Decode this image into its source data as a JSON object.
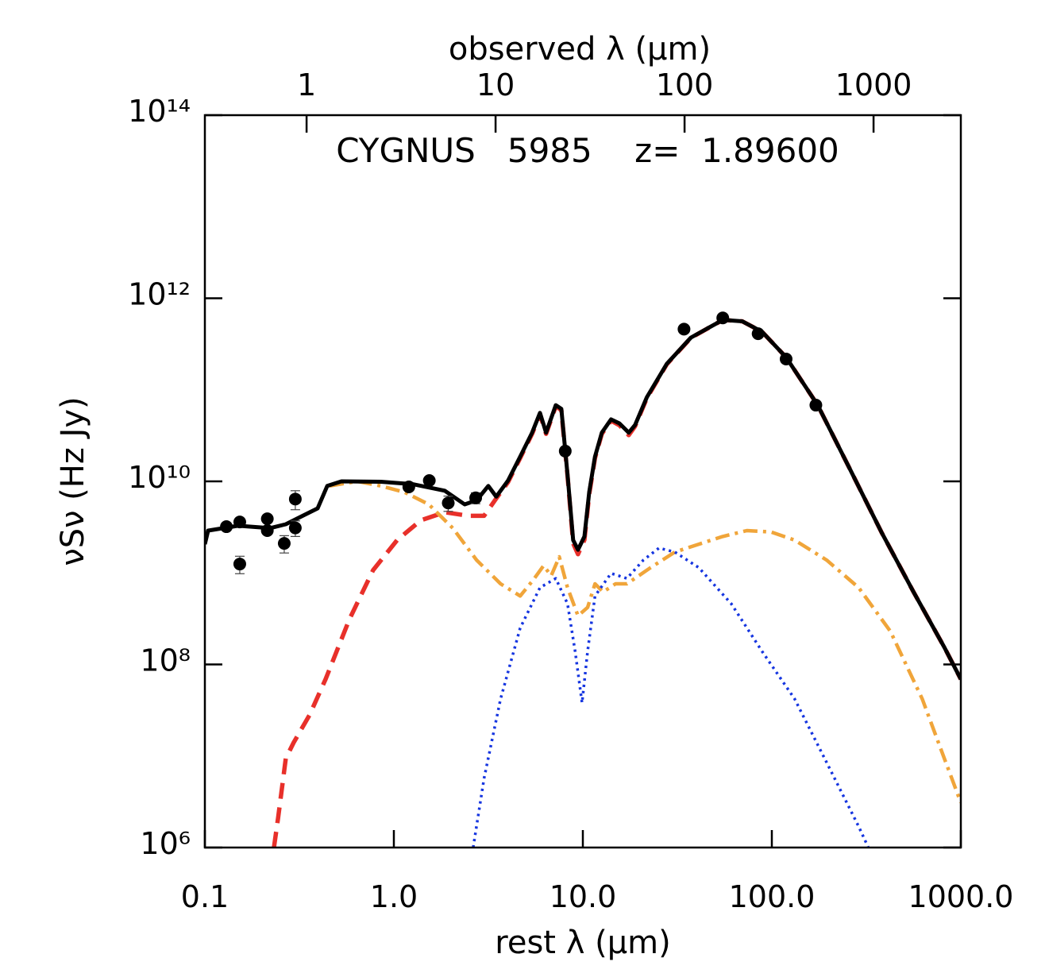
{
  "chart_data": {
    "type": "line",
    "title": "CYGNUS   5985    z=  1.89600",
    "title_color": "#e8302a",
    "x_label": "rest λ (μm)",
    "x2_label": "observed λ (μm)",
    "y_label": "νSν (Hz Jy)",
    "xscale": "log",
    "yscale": "log",
    "xlim": [
      0.1,
      1000
    ],
    "xticks": [
      0.1,
      {
        "value": 1,
        "label": "1.0"
      },
      {
        "value": 10,
        "label": "10.0"
      },
      {
        "value": 100,
        "label": "100.0"
      },
      {
        "value": 1000,
        "label": "1000.0"
      }
    ],
    "x2lim": [
      0.2896,
      2896
    ],
    "x2ticks": [
      1,
      10,
      100,
      1000
    ],
    "ylim": [
      1000000.0,
      100000000000000.0
    ],
    "yticks": [
      {
        "value": 1000000.0,
        "label": "10⁶"
      },
      {
        "value": 100000000.0,
        "label": "10⁸"
      },
      {
        "value": 10000000000.0,
        "label": "10¹⁰"
      },
      {
        "value": 1000000000000.0,
        "label": "10¹²"
      },
      {
        "value": 100000000000000.0,
        "label": "10¹⁴"
      }
    ],
    "series": [
      {
        "color": "#e8302a",
        "dash": "dashed",
        "x": [
          0.232,
          0.244,
          0.268,
          0.295,
          0.358,
          0.435,
          0.581,
          0.776,
          1.04,
          1.39,
          1.86,
          2.49,
          3.0,
          3.48,
          4.02,
          4.66,
          5.39,
          5.93,
          6.39,
          7.19,
          7.69,
          8.31,
          8.89,
          9.43,
          10.2,
          10.8,
          11.6,
          12.6,
          14.1,
          15.6,
          17.5,
          18.9,
          21.8,
          27.8,
          37.3,
          55.0,
          69.7,
          88.8,
          119,
          175,
          258,
          380,
          562,
          818,
          1000
        ],
        "values": [
          1000000.0,
          2100000.0,
          9400000.0,
          14000000.0,
          28000000.0,
          69000000.0,
          310000000.0,
          1070000000.0,
          2280000000.0,
          3760000000.0,
          4600000000.0,
          4200000000.0,
          4200000000.0,
          6500000000.0,
          9800000000.0,
          18000000000.0,
          33000000000.0,
          54000000000.0,
          33000000000.0,
          66000000000.0,
          60000000000.0,
          11000000000.0,
          2100000000.0,
          1600000000.0,
          2300000000.0,
          7200000000.0,
          18000000000.0,
          33000000000.0,
          46000000000.0,
          41000000000.0,
          32000000000.0,
          40000000000.0,
          81000000000.0,
          190000000000.0,
          370000000000.0,
          580000000000.0,
          560000000000.0,
          430000000000.0,
          226000000000.0,
          68000000000.0,
          13800000000.0,
          2790000000.0,
          620000000.0,
          154000000.0,
          69000000.0
        ]
      },
      {
        "color": "#f0a53a",
        "dash": "dashdot",
        "x": [
          0.457,
          0.64,
          0.855,
          1.14,
          1.53,
          2.05,
          2.74,
          3.67,
          4.66,
          5.47,
          6.2,
          6.8,
          7.5,
          8.3,
          9.43,
          10.6,
          11.6,
          12.8,
          14.9,
          17.1,
          22.8,
          30.7,
          41.1,
          55,
          73.8,
          98.9,
          132,
          195,
          288,
          424,
          625,
          818,
          1000
        ],
        "values": [
          8900000000.0,
          10000000000.0,
          8900000000.0,
          7600000000.0,
          5600000000.0,
          3080000000.0,
          1380000000.0,
          760000000.0,
          560000000.0,
          840000000.0,
          1200000000.0,
          930000000.0,
          1500000000.0,
          690000000.0,
          340000000.0,
          420000000.0,
          760000000.0,
          620000000.0,
          760000000.0,
          760000000.0,
          1140000000.0,
          1690000000.0,
          2060000000.0,
          2500000000.0,
          2900000000.0,
          2800000000.0,
          2280000000.0,
          1380000000.0,
          690000000.0,
          230000000.0,
          42000000.0,
          9400000.0,
          3100000.0
        ]
      },
      {
        "color": "#1535e0",
        "dash": "dotted",
        "x": [
          2.63,
          3.0,
          3.67,
          4.66,
          5.93,
          7.19,
          8.3,
          9.1,
          9.9,
          10.6,
          11.6,
          14.1,
          17.1,
          20.9,
          25.3,
          30.7,
          41.1,
          61,
          88.8,
          132,
          195,
          288,
          324
        ],
        "values": [
          1000000.0,
          5700000.0,
          42000000.0,
          250000000.0,
          690000000.0,
          870000000.0,
          460000000.0,
          139000000.0,
          38000000.0,
          139000000.0,
          560000000.0,
          990000000.0,
          870000000.0,
          1380000000.0,
          1870000000.0,
          1690000000.0,
          1140000000.0,
          460000000.0,
          139000000.0,
          42000000.0,
          8500000.0,
          1700000.0,
          1000000.0
        ]
      },
      {
        "color": "#000000",
        "dash": "solid",
        "x": [
          0.1,
          0.104,
          0.15,
          0.221,
          0.268,
          0.395,
          0.444,
          0.528,
          0.855,
          1.26,
          1.86,
          2.37,
          2.74,
          3.16,
          3.48,
          4.02,
          4.66,
          5.39,
          5.93,
          6.39,
          7.19,
          7.69,
          8.31,
          8.89,
          9.43,
          10.2,
          10.8,
          11.6,
          12.6,
          14.1,
          15.6,
          17.5,
          18.9,
          21.8,
          27.8,
          37.3,
          55.0,
          69.7,
          88.8,
          119,
          175,
          258,
          380,
          562,
          818,
          1000
        ],
        "values": [
          2060000000.0,
          2900000000.0,
          3270000000.0,
          3080000000.0,
          3400000000.0,
          5070000000.0,
          8900000000.0,
          10000000000.0,
          9900000000.0,
          9300000000.0,
          7900000000.0,
          5600000000.0,
          6200000000.0,
          8900000000.0,
          6800000000.0,
          10200000000.0,
          18600000000.0,
          34000000000.0,
          56000000000.0,
          34000000000.0,
          68000000000.0,
          62000000000.0,
          11300000000.0,
          2280000000.0,
          1790000000.0,
          2500000000.0,
          7600000000.0,
          18600000000.0,
          34000000000.0,
          47500000000.0,
          43000000000.0,
          34000000000.0,
          41300000000.0,
          83000000000.0,
          192000000000.0,
          372000000000.0,
          580000000000.0,
          560000000000.0,
          430000000000.0,
          226000000000.0,
          68000000000.0,
          13800000000.0,
          2790000000.0,
          620000000.0,
          154000000.0,
          69000000.0
        ]
      }
    ],
    "points": {
      "color": "#000000",
      "x": [
        0.13,
        0.153,
        0.153,
        0.214,
        0.214,
        0.263,
        0.301,
        0.301,
        1.2,
        1.54,
        1.94,
        2.71,
        8.07,
        34.3,
        55,
        84.6,
        119,
        171
      ],
      "values": [
        3200000000.0,
        1250000000.0,
        3600000000.0,
        3900000000.0,
        2900000000.0,
        2100000000.0,
        3100000000.0,
        6400000000.0,
        8700000000.0,
        10200000000.0,
        5800000000.0,
        6600000000.0,
        21400000000.0,
        460000000000.0,
        610000000000.0,
        410000000000.0,
        217000000000.0,
        68000000000.0
      ],
      "errors": [
        150000000.0,
        270000000.0,
        200000000.0,
        300000000.0,
        200000000.0,
        450000000.0,
        600000000.0,
        1500000000.0,
        500000000.0,
        600000000.0,
        1100000000.0,
        900000000.0,
        1000000000.0,
        30000000000.0,
        20000000000.0,
        20000000000.0,
        10000000000.0,
        3000000000.0
      ]
    }
  }
}
